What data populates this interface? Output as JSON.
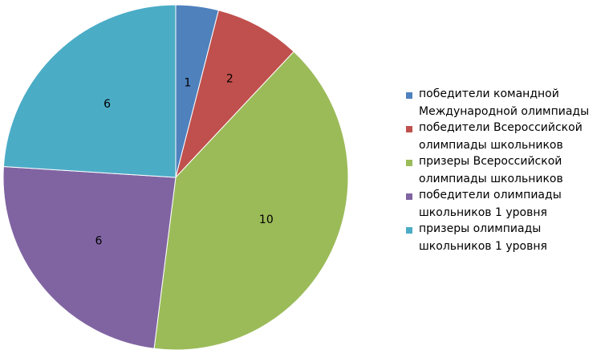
{
  "chart_data": {
    "type": "pie",
    "categories": [
      "победители командной\nМеждународной олимпиады",
      "победители Всероссийской\nолимпиады школьников",
      "призеры Всероссийской\nолимпиады школьников",
      "победители олимпиады\nшкольников 1 уровня",
      "призеры олимпиады\nшкольников 1 уровня"
    ],
    "values": [
      1,
      2,
      10,
      6,
      6
    ],
    "labels": [
      "1",
      "2",
      "10",
      "6",
      "6"
    ],
    "colors": [
      "#4F81BD",
      "#C0504D",
      "#9BBB59",
      "#8064A2",
      "#4BACC6"
    ],
    "start_angle": "12 o'clock",
    "direction": "clockwise",
    "legend_position": "right"
  }
}
